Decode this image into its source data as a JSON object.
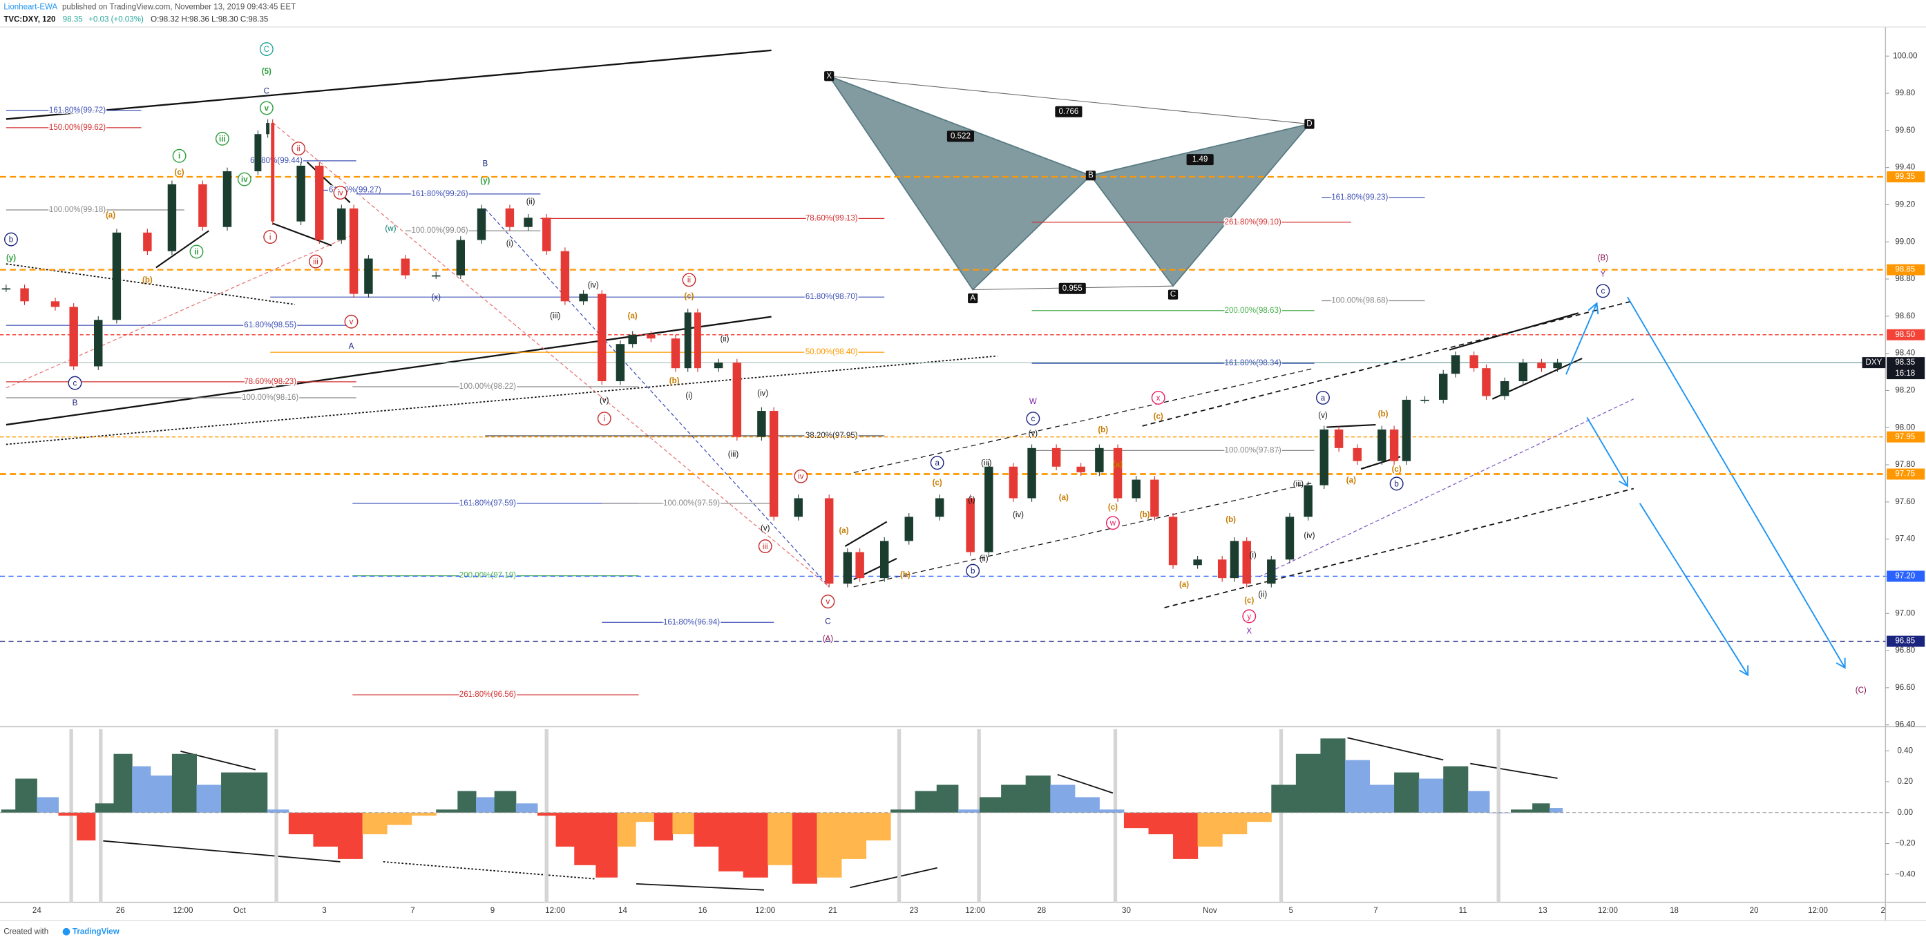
{
  "header": {
    "author": "Lionheart-EWA",
    "published": "published on TradingView.com, November 13, 2019 09:43:45 EET",
    "symbol": "TVC:DXY, 120",
    "last": "98.35",
    "change": "+0.03 (+0.03%)",
    "ohlc": "O:98.32 H:98.36 L:98.30 C:98.35"
  },
  "chart_data": {
    "type": "candlestick",
    "closes": [
      98.75,
      98.68,
      98.65,
      98.33,
      98.58,
      99.05,
      98.95,
      99.31,
      99.08,
      99.38,
      99.58,
      99.64,
      99.11,
      99.41,
      99.01,
      99.18,
      98.72,
      98.91,
      98.82,
      98.82,
      99.01,
      99.18,
      99.08,
      99.13,
      98.95,
      98.68,
      98.72,
      98.25,
      98.45,
      98.5,
      98.48,
      98.32,
      98.62,
      98.32,
      98.35,
      97.95,
      98.09,
      97.52,
      97.62,
      97.16,
      97.33,
      97.19,
      97.39,
      97.52,
      97.62,
      97.33,
      97.79,
      97.62,
      97.89,
      97.79,
      97.76,
      97.89,
      97.62,
      97.72,
      97.52,
      97.26,
      97.29,
      97.19,
      97.39,
      97.16,
      97.29,
      97.52,
      97.69,
      97.99,
      97.89,
      97.82,
      97.99,
      97.82,
      98.15,
      98.15,
      98.29,
      98.39,
      98.32,
      98.17,
      98.25,
      98.35,
      98.32,
      98.35
    ],
    "ylim": [
      96.39,
      100.15
    ],
    "yticks": [
      {
        "value": 100.0,
        "label": "100.00"
      },
      {
        "value": 99.8,
        "label": "99.80"
      },
      {
        "value": 99.6,
        "label": "99.60"
      },
      {
        "value": 99.4,
        "label": "99.40"
      },
      {
        "value": 99.2,
        "label": "99.20"
      },
      {
        "value": 99.0,
        "label": "99.00"
      },
      {
        "value": 98.8,
        "label": "98.80"
      },
      {
        "value": 98.6,
        "label": "98.60"
      },
      {
        "value": 98.4,
        "label": "98.40"
      },
      {
        "value": 98.2,
        "label": "98.20"
      },
      {
        "value": 98.0,
        "label": "98.00"
      },
      {
        "value": 97.8,
        "label": "97.80"
      },
      {
        "value": 97.6,
        "label": "97.60"
      },
      {
        "value": 97.4,
        "label": "97.40"
      },
      {
        "value": 97.2,
        "label": "97.20"
      },
      {
        "value": 97.0,
        "label": "97.00"
      },
      {
        "value": 96.8,
        "label": "96.80"
      },
      {
        "value": 96.6,
        "label": "96.60"
      },
      {
        "value": 96.4,
        "label": "96.40"
      }
    ],
    "markers": [
      {
        "value": 99.35,
        "label": "99.35"
      },
      {
        "value": 98.85,
        "label": "98.85"
      },
      {
        "value": 98.5,
        "label": "98.50"
      },
      {
        "value": 97.95,
        "label": "97.95"
      },
      {
        "value": 97.75,
        "label": "97.75"
      },
      {
        "value": 97.2,
        "label": "97.20"
      },
      {
        "value": 96.85,
        "label": "96.85"
      }
    ],
    "last_price": {
      "value": 98.35,
      "label": "98.35"
    },
    "symbol_tag": "DXY",
    "countdown": "16:18",
    "time_labels": [
      "24",
      "26",
      "12:00",
      "Oct",
      "3",
      "7",
      "9",
      "12:00",
      "14",
      "16",
      "12:00",
      "21",
      "23",
      "12:00",
      "28",
      "30",
      "Nov",
      "5",
      "7",
      "11",
      "13",
      "12:00",
      "18",
      "20",
      "12:00",
      "2"
    ],
    "fib_labels": [
      "161.80%(99.72)",
      "150.00%(99.62)",
      "100.00%(99.18)",
      "61.80%(99.44)",
      "61.80%(99.27)",
      "161.80%(99.26)",
      "100.00%(99.06)",
      "78.60%(99.13)",
      "261.80%(99.10)",
      "161.80%(99.23)",
      "61.80%(98.70)",
      "61.80%(98.55)",
      "100.00%(98.68)",
      "200.00%(98.63)",
      "50.00%(98.40)",
      "161.80%(98.34)",
      "78.60%(98.23)",
      "100.00%(98.16)",
      "100.00%(98.22)",
      "38.20%(97.95)",
      "100.00%(97.87)",
      "161.80%(97.59)",
      "100.00%(97.59)",
      "200.00%(97.19)",
      "161.80%(96.94)",
      "261.80%(96.56)"
    ],
    "wave_labels": [
      "C",
      "(5)",
      "C",
      "v",
      "i",
      "iii",
      "iv",
      "ii",
      "(c)",
      "(a)",
      "(b)",
      "b",
      "(y)",
      "c",
      "B",
      "ii",
      "iv",
      "i",
      "iii",
      "v",
      "A",
      "B",
      "(y)",
      "(w)",
      "(x)",
      "(ii)",
      "(i)",
      "(iii)",
      "(iv)",
      "(v)",
      "i",
      "(a)",
      "(b)",
      "ii",
      "(c)",
      "(ii)",
      "(i)",
      "(iv)",
      "(iii)",
      "iv",
      "(v)",
      "iii",
      "v",
      "C",
      "(A)",
      "(a)",
      "(b)",
      "a",
      "(c)",
      "(i)",
      "(iii)",
      "(iv)",
      "(ii)",
      "b",
      "W",
      "c",
      "(v)",
      "(b)",
      "(a)",
      "(a)",
      "(c)",
      "w",
      "(b)",
      "x",
      "(c)",
      "(b)",
      "(a)",
      "(i)",
      "(ii)",
      "(c)",
      "y",
      "X",
      "(iii)",
      "(iv)",
      "a",
      "(v)",
      "(b)",
      "(a)",
      "(c)",
      "b",
      "(B)",
      "Y",
      "c",
      "(C)"
    ],
    "pattern": {
      "points": [
        "X",
        "A",
        "B",
        "C",
        "D"
      ],
      "ratios": [
        "0.522",
        "0.766",
        "1.49",
        "0.955"
      ]
    }
  },
  "oscillator": {
    "values": [
      0.02,
      0.22,
      0.1,
      -0.02,
      -0.18,
      0.06,
      0.38,
      0.3,
      0.24,
      0.38,
      0.18,
      0.26,
      0.26,
      0.02,
      -0.14,
      -0.22,
      -0.3,
      -0.14,
      -0.08,
      -0.02,
      0.02,
      0.14,
      0.1,
      0.14,
      0.06,
      -0.02,
      -0.22,
      -0.34,
      -0.42,
      -0.22,
      -0.06,
      -0.18,
      -0.14,
      -0.22,
      -0.38,
      -0.42,
      -0.34,
      -0.46,
      -0.42,
      -0.3,
      -0.18,
      0.02,
      0.14,
      0.18,
      0.02,
      0.1,
      0.18,
      0.24,
      0.18,
      0.1,
      0.02,
      -0.1,
      -0.14,
      -0.3,
      -0.22,
      -0.14,
      -0.06,
      0.18,
      0.38,
      0.48,
      0.34,
      0.18,
      0.26,
      0.22,
      0.3,
      0.14,
      0,
      0.02,
      0.06,
      0.03
    ],
    "ylim": [
      -0.58,
      0.54
    ],
    "yticks": [
      {
        "value": 0.4,
        "label": "0.40"
      },
      {
        "value": 0.2,
        "label": "0.20"
      },
      {
        "value": 0,
        "label": "0.00"
      },
      {
        "value": -0.2,
        "label": "−0.20"
      },
      {
        "value": -0.4,
        "label": "−0.40"
      }
    ]
  },
  "footer": {
    "created": "Created with",
    "brand": "TradingView"
  }
}
